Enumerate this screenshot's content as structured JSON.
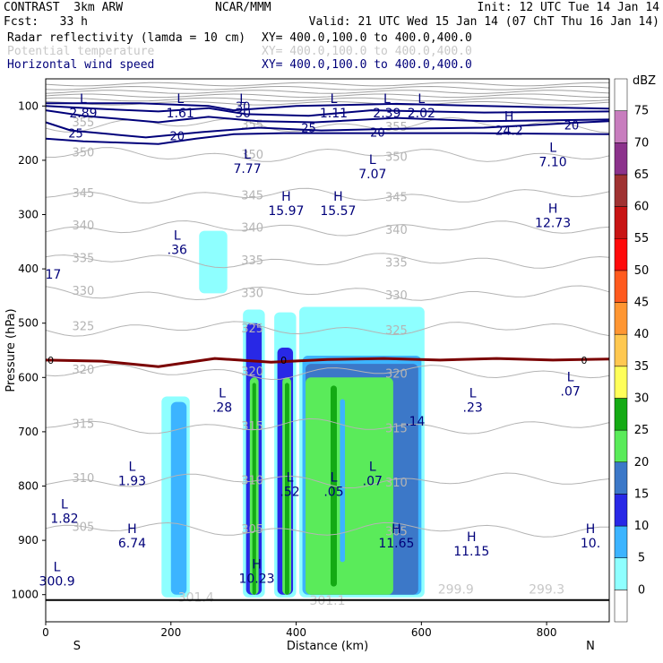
{
  "header": {
    "model": "CONTRAST  3km ARW",
    "center": "NCAR/MMM",
    "init": "Init: 12 UTC Tue 14 Jan 14",
    "fcst": "Fcst:   33 h",
    "valid": "Valid: 21 UTC Wed 15 Jan 14 (07 ChT Thu 16 Jan 14)",
    "fields": [
      {
        "label": "Radar reflectivity (lamda = 10 cm)",
        "xy": "XY= 400.0,100.0 to 400.0,400.0",
        "color": "#000000"
      },
      {
        "label": "Potential temperature",
        "xy": "XY= 400.0,100.0 to 400.0,400.0",
        "color": "#c8c8c8"
      },
      {
        "label": "Horizontal wind speed",
        "xy": "XY= 400.0,100.0 to 400.0,400.0",
        "color": "#00007a"
      }
    ]
  },
  "chart_data": {
    "type": "cross-section contour",
    "xlabel": "Distance (km)",
    "ylabel": "Pressure (hPa)",
    "xlim": [
      0,
      900
    ],
    "ylim": [
      1050,
      50
    ],
    "x_ticks": [
      0,
      200,
      400,
      600,
      800
    ],
    "y_ticks": [
      100,
      200,
      300,
      400,
      500,
      600,
      700,
      800,
      900,
      1000
    ],
    "x_end_labels": {
      "left": "S",
      "right": "N"
    },
    "colorbar": {
      "unit": "dBZ",
      "levels": [
        0,
        5,
        10,
        15,
        20,
        25,
        30,
        35,
        40,
        45,
        50,
        55,
        60,
        65,
        70,
        75
      ],
      "colors": [
        "#ffffff",
        "#8effff",
        "#3cb4ff",
        "#2828e6",
        "#3c78c8",
        "#5aeb5a",
        "#14aa14",
        "#ffff5a",
        "#ffc850",
        "#ff9632",
        "#ff5a1e",
        "#ff0a0a",
        "#c81414",
        "#a03232",
        "#8c328c",
        "#c87dbe"
      ]
    },
    "reflectivity_cells": [
      {
        "x0": 185,
        "x1": 230,
        "ptop": 635,
        "pbot": 1005,
        "dbz": 5
      },
      {
        "x0": 200,
        "x1": 225,
        "ptop": 645,
        "pbot": 1000,
        "dbz": 10
      },
      {
        "x0": 245,
        "x1": 290,
        "ptop": 330,
        "pbot": 445,
        "dbz": 5
      },
      {
        "x0": 315,
        "x1": 350,
        "ptop": 475,
        "pbot": 1005,
        "dbz": 5
      },
      {
        "x0": 320,
        "x1": 345,
        "ptop": 500,
        "pbot": 1000,
        "dbz": 15
      },
      {
        "x0": 326,
        "x1": 340,
        "ptop": 600,
        "pbot": 1000,
        "dbz": 25
      },
      {
        "x0": 330,
        "x1": 336,
        "ptop": 610,
        "pbot": 1000,
        "dbz": 30
      },
      {
        "x0": 365,
        "x1": 400,
        "ptop": 480,
        "pbot": 1005,
        "dbz": 5
      },
      {
        "x0": 370,
        "x1": 395,
        "ptop": 545,
        "pbot": 1000,
        "dbz": 15
      },
      {
        "x0": 378,
        "x1": 392,
        "ptop": 600,
        "pbot": 1000,
        "dbz": 25
      },
      {
        "x0": 382,
        "x1": 389,
        "ptop": 610,
        "pbot": 1000,
        "dbz": 30
      },
      {
        "x0": 405,
        "x1": 605,
        "ptop": 470,
        "pbot": 1005,
        "dbz": 5
      },
      {
        "x0": 410,
        "x1": 600,
        "ptop": 560,
        "pbot": 1000,
        "dbz": 10
      },
      {
        "x0": 415,
        "x1": 595,
        "ptop": 575,
        "pbot": 1000,
        "dbz": 20
      },
      {
        "x0": 415,
        "x1": 555,
        "ptop": 600,
        "pbot": 1000,
        "dbz": 25
      },
      {
        "x0": 455,
        "x1": 465,
        "ptop": 615,
        "pbot": 985,
        "dbz": 30
      },
      {
        "x0": 470,
        "x1": 478,
        "ptop": 640,
        "pbot": 940,
        "dbz": 10
      }
    ],
    "theta_contours": [
      {
        "value": 355,
        "p": 135
      },
      {
        "value": 350,
        "p": 190
      },
      {
        "value": 345,
        "p": 265
      },
      {
        "value": 340,
        "p": 325
      },
      {
        "value": 335,
        "p": 385
      },
      {
        "value": 330,
        "p": 445
      },
      {
        "value": 325,
        "p": 510
      },
      {
        "value": 320,
        "p": 590
      },
      {
        "value": 315,
        "p": 690
      },
      {
        "value": 310,
        "p": 790
      },
      {
        "value": 305,
        "p": 880
      }
    ],
    "freezing_level_label": "0",
    "freezing_level": [
      [
        0,
        568
      ],
      [
        90,
        570
      ],
      [
        180,
        580
      ],
      [
        270,
        565
      ],
      [
        360,
        572
      ],
      [
        450,
        567
      ],
      [
        540,
        565
      ],
      [
        630,
        568
      ],
      [
        720,
        565
      ],
      [
        810,
        568
      ],
      [
        900,
        566
      ]
    ],
    "jet_contour_labels": [
      {
        "text": "25",
        "x": 48,
        "p": 150
      },
      {
        "text": "20",
        "x": 210,
        "p": 155
      },
      {
        "text": "30",
        "x": 315,
        "p": 100
      },
      {
        "text": "25",
        "x": 420,
        "p": 140
      },
      {
        "text": "20",
        "x": 530,
        "p": 148
      },
      {
        "text": "20",
        "x": 840,
        "p": 135
      }
    ],
    "annotations": [
      {
        "letter": "L",
        "value": "2.89",
        "x": 60,
        "p": 88
      },
      {
        "letter": "L",
        "value": "1.61",
        "x": 215,
        "p": 88
      },
      {
        "letter": "L",
        "value": "30",
        "x": 315,
        "p": 88
      },
      {
        "letter": "L",
        "value": "1.11",
        "x": 460,
        "p": 88
      },
      {
        "letter": "L",
        "value": "2.39",
        "x": 545,
        "p": 88
      },
      {
        "letter": "L",
        "value": "2.02",
        "x": 600,
        "p": 88
      },
      {
        "letter": "H",
        "value": "24.2",
        "x": 740,
        "p": 120
      },
      {
        "letter": "L",
        "value": "7.77",
        "x": 322,
        "p": 190
      },
      {
        "letter": "L",
        "value": "7.07",
        "x": 522,
        "p": 200
      },
      {
        "letter": "L",
        "value": "7.10",
        "x": 810,
        "p": 178
      },
      {
        "letter": "H",
        "value": "15.97",
        "x": 384,
        "p": 268
      },
      {
        "letter": "H",
        "value": "15.57",
        "x": 467,
        "p": 268
      },
      {
        "letter": "H",
        "value": "12.73",
        "x": 810,
        "p": 290
      },
      {
        "letter": "L",
        "value": ".36",
        "x": 210,
        "p": 340
      },
      {
        "letter": "L",
        "value": ".28",
        "x": 282,
        "p": 630
      },
      {
        "letter": "L",
        "value": ".23",
        "x": 682,
        "p": 630
      },
      {
        "letter": "L",
        "value": ".07",
        "x": 838,
        "p": 600
      },
      {
        "letter": "L",
        "value": "1.93",
        "x": 138,
        "p": 765
      },
      {
        "letter": "L",
        "value": ".07",
        "x": 522,
        "p": 765
      },
      {
        "letter": "L",
        "value": ".52",
        "x": 390,
        "p": 785
      },
      {
        "letter": "L",
        "value": ".05",
        "x": 460,
        "p": 785
      },
      {
        "letter": "L",
        "value": "1.82",
        "x": 30,
        "p": 835
      },
      {
        "letter": "H",
        "value": "6.74",
        "x": 138,
        "p": 880
      },
      {
        "letter": "H",
        "value": "11.65",
        "x": 560,
        "p": 880
      },
      {
        "letter": "H",
        "value": "11.15",
        "x": 680,
        "p": 895
      },
      {
        "letter": "H",
        "value": "10.",
        "x": 870,
        "p": 880
      },
      {
        "letter": "H",
        "value": "10.23",
        "x": 337,
        "p": 945
      },
      {
        "letter": "L",
        "value": "300.9",
        "x": 18,
        "p": 950
      }
    ],
    "extra_labels": [
      {
        "text": "17",
        "x": 12,
        "p": 410,
        "color": "#00007a"
      },
      {
        "text": ".14",
        "x": 590,
        "p": 680,
        "color": "#00007a"
      },
      {
        "text": "301.4",
        "x": 240,
        "p": 1005,
        "color": "#c8c8c8"
      },
      {
        "text": "301.1",
        "x": 450,
        "p": 1010,
        "color": "#c8c8c8"
      },
      {
        "text": "299.9",
        "x": 655,
        "p": 990,
        "color": "#c8c8c8"
      },
      {
        "text": "299.3",
        "x": 800,
        "p": 990,
        "color": "#c8c8c8"
      }
    ]
  }
}
